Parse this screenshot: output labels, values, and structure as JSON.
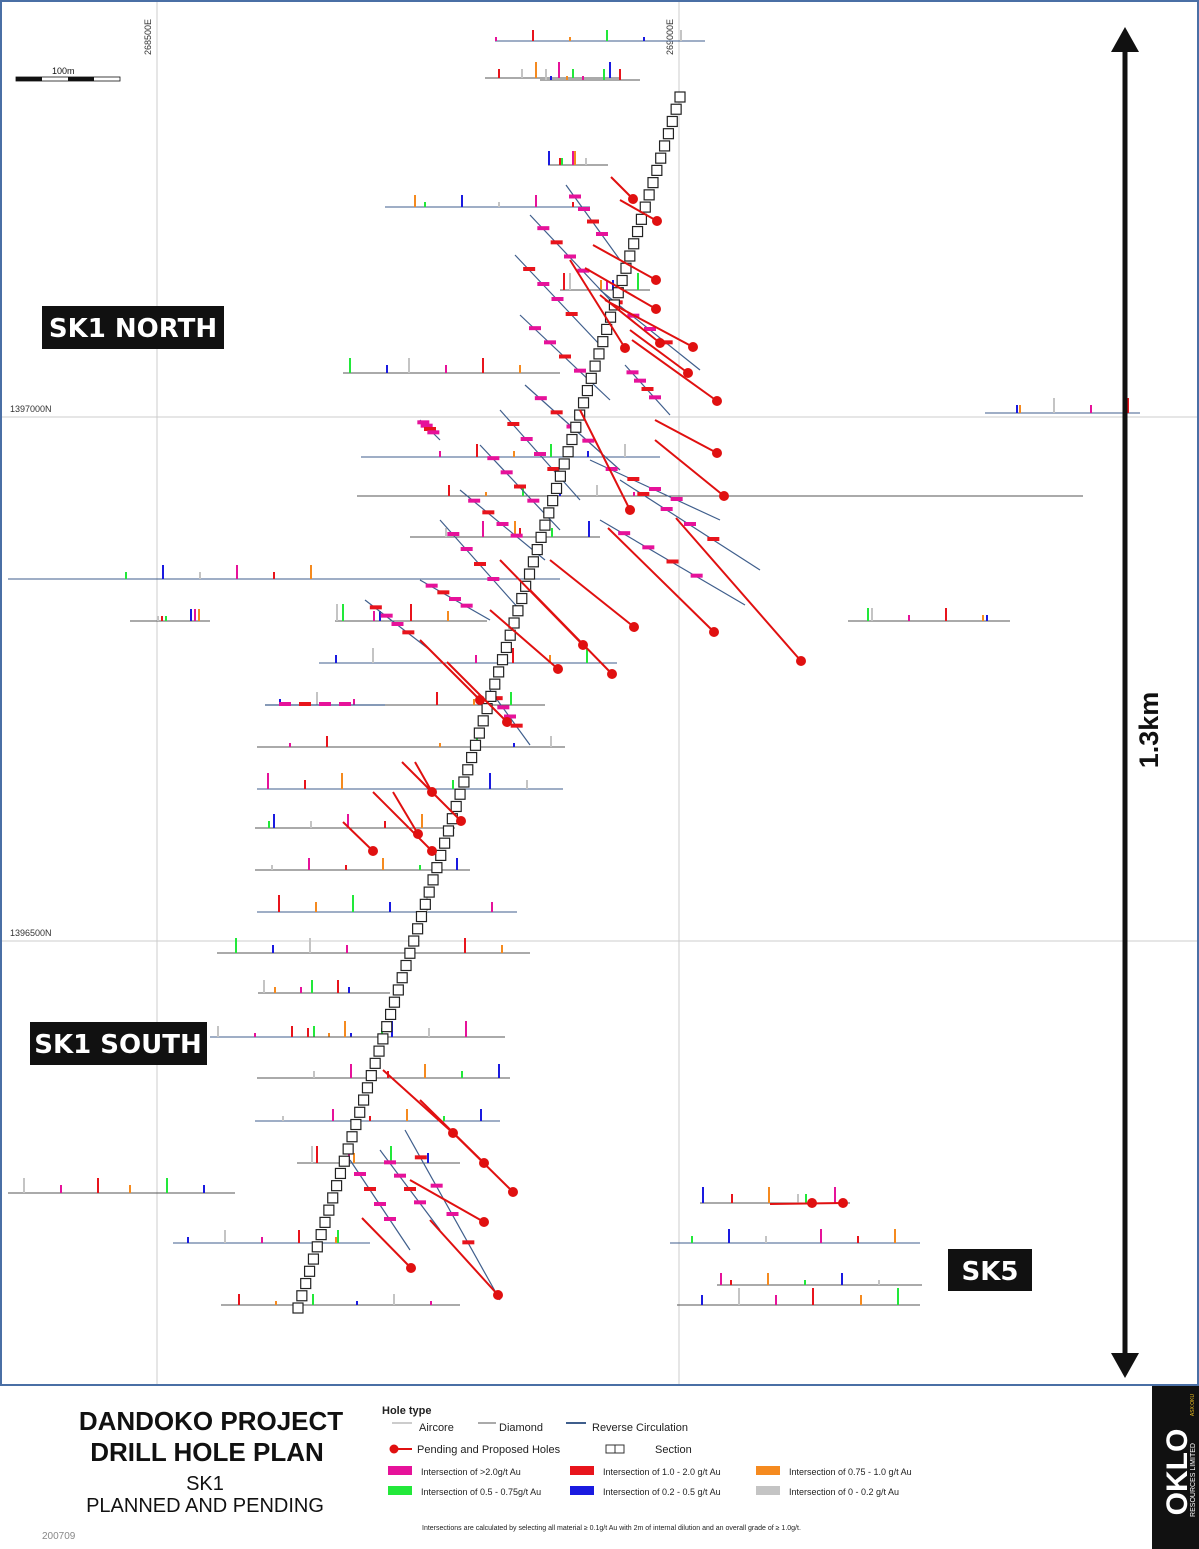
{
  "map": {
    "eastings": [
      "268500E",
      "269000E"
    ],
    "northings": [
      "1397000N",
      "1396500N"
    ],
    "scale_bar": "100m",
    "zones": [
      "SK1 NORTH",
      "SK1 SOUTH",
      "SK5"
    ],
    "distance": "1.3km"
  },
  "title_block": {
    "title": "DANDOKO PROJECT",
    "subtitle": "DRILL HOLE PLAN",
    "area": "SK1",
    "status": "PLANNED AND PENDING",
    "code": "200709"
  },
  "legend": {
    "heading": "Hole type",
    "hole_types": [
      "Aircore",
      "Diamond",
      "Reverse Circulation"
    ],
    "pending": "Pending and Proposed Holes",
    "section": "Section",
    "intersections": [
      {
        "label": "Intersection of >2.0g/t Au",
        "color": "#e6129a"
      },
      {
        "label": "Intersection of 1.0 - 2.0 g/t Au",
        "color": "#e8141c"
      },
      {
        "label": "Intersection of 0.75 - 1.0 g/t Au",
        "color": "#f58a1f"
      },
      {
        "label": "Intersection of 0.5 - 0.75g/t Au",
        "color": "#22e83a"
      },
      {
        "label": "Intersection of 0.2 - 0.5 g/t Au",
        "color": "#1a1ae0"
      },
      {
        "label": "Intersection of 0 - 0.2 g/t Au",
        "color": "#c4c4c4"
      }
    ],
    "footnote": "Intersections are calculated by selecting all material ≥ 0.1g/t Au with 2m of internal dilution and an overall grade of ≥ 1.0g/t."
  },
  "logo": {
    "ticker": "ASX:OKU",
    "name": "OKLO",
    "company": "RESOURCES LIMITED"
  }
}
